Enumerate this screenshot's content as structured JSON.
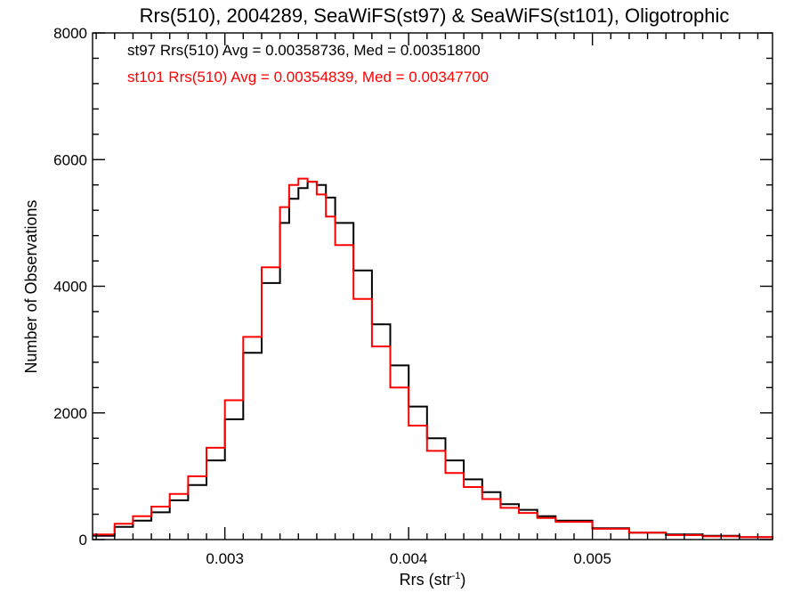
{
  "chart_data": {
    "type": "line",
    "title": "Rrs(510), 2004289, SeaWiFS(st97) & SeaWiFS(st101), Oligotrophic",
    "xlabel_main": "Rrs (str",
    "xlabel_sup": "-1",
    "xlabel_close": ")",
    "ylabel": "Number of Observations",
    "xlim": [
      0.00228,
      0.00598
    ],
    "ylim": [
      0,
      8000
    ],
    "x_ticks": [
      {
        "value": 0.003,
        "label": "0.003"
      },
      {
        "value": 0.004,
        "label": "0.004"
      },
      {
        "value": 0.005,
        "label": "0.005"
      }
    ],
    "y_ticks": [
      {
        "value": 0,
        "label": "0"
      },
      {
        "value": 2000,
        "label": "2000"
      },
      {
        "value": 4000,
        "label": "4000"
      },
      {
        "value": 6000,
        "label": "6000"
      },
      {
        "value": 8000,
        "label": "8000"
      }
    ],
    "grid": false,
    "legend_position": "top-left",
    "series": [
      {
        "name": "st97 Rrs(510) Avg = 0.00358736, Med = 0.00351800",
        "color": "#000000",
        "x": [
          0.00228,
          0.0024,
          0.0025,
          0.0026,
          0.0027,
          0.0028,
          0.0029,
          0.003,
          0.0031,
          0.0032,
          0.0033,
          0.00335,
          0.0034,
          0.00345,
          0.0035,
          0.00355,
          0.0036,
          0.0037,
          0.0038,
          0.0039,
          0.004,
          0.0041,
          0.0042,
          0.0043,
          0.0044,
          0.0045,
          0.0046,
          0.0047,
          0.0048,
          0.005,
          0.0052,
          0.0054,
          0.0056,
          0.0058,
          0.00598
        ],
        "y": [
          60,
          200,
          300,
          430,
          620,
          860,
          1250,
          1900,
          2950,
          4050,
          5000,
          5380,
          5550,
          5650,
          5600,
          5400,
          5000,
          4250,
          3400,
          2750,
          2100,
          1600,
          1250,
          950,
          750,
          560,
          470,
          370,
          300,
          180,
          110,
          80,
          60,
          40,
          20
        ]
      },
      {
        "name": "st101 Rrs(510) Avg = 0.00354839, Med = 0.00347700",
        "color": "#ff0000",
        "x": [
          0.00228,
          0.0024,
          0.0025,
          0.0026,
          0.0027,
          0.0028,
          0.0029,
          0.003,
          0.0031,
          0.0032,
          0.0033,
          0.00335,
          0.0034,
          0.00345,
          0.0035,
          0.00355,
          0.0036,
          0.0037,
          0.0038,
          0.0039,
          0.004,
          0.0041,
          0.0042,
          0.0043,
          0.0044,
          0.0045,
          0.0046,
          0.0047,
          0.0048,
          0.005,
          0.0052,
          0.0054,
          0.0056,
          0.0058,
          0.00598
        ],
        "y": [
          80,
          250,
          370,
          520,
          720,
          1000,
          1450,
          2200,
          3200,
          4300,
          5250,
          5600,
          5700,
          5650,
          5450,
          5100,
          4650,
          3800,
          3050,
          2400,
          1800,
          1400,
          1050,
          830,
          640,
          500,
          420,
          340,
          280,
          170,
          110,
          70,
          50,
          40,
          20
        ]
      }
    ]
  }
}
